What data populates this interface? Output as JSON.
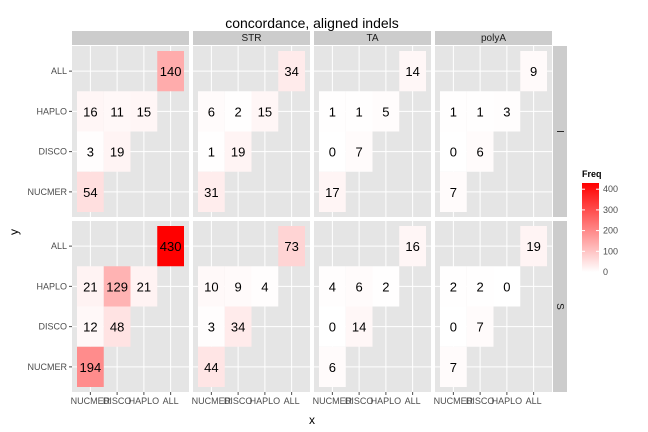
{
  "chart_data": {
    "type": "heatmap",
    "title": "concordance, aligned indels",
    "xlabel": "x",
    "ylabel": "y",
    "x_categories": [
      "NUCMER",
      "DISCO",
      "HAPLO",
      "ALL"
    ],
    "y_categories": [
      "NUCMER",
      "DISCO",
      "HAPLO",
      "ALL"
    ],
    "facet_cols": [
      "",
      "STR",
      "TA",
      "polyA"
    ],
    "facet_rows": [
      "I",
      "S"
    ],
    "legend": {
      "title": "Freq",
      "ticks": [
        0,
        100,
        200,
        300,
        400
      ],
      "min": 0,
      "max": 430,
      "low_color": "#FFFFFF",
      "high_color": "#FF0000",
      "position": "right"
    },
    "grid": true,
    "panels": [
      {
        "row": "I",
        "col": "",
        "cells": [
          {
            "x": "NUCMER",
            "y": "ALL",
            "value": null
          },
          {
            "x": "ALL",
            "y": "ALL",
            "value": 140
          },
          {
            "x": "NUCMER",
            "y": "HAPLO",
            "value": 16
          },
          {
            "x": "DISCO",
            "y": "HAPLO",
            "value": 11
          },
          {
            "x": "HAPLO",
            "y": "HAPLO",
            "value": 15
          },
          {
            "x": "NUCMER",
            "y": "DISCO",
            "value": 3
          },
          {
            "x": "DISCO",
            "y": "DISCO",
            "value": 19
          },
          {
            "x": "NUCMER",
            "y": "NUCMER",
            "value": 54
          }
        ]
      },
      {
        "row": "I",
        "col": "STR",
        "cells": [
          {
            "x": "ALL",
            "y": "ALL",
            "value": 34
          },
          {
            "x": "NUCMER",
            "y": "HAPLO",
            "value": 6
          },
          {
            "x": "DISCO",
            "y": "HAPLO",
            "value": 2
          },
          {
            "x": "HAPLO",
            "y": "HAPLO",
            "value": 15
          },
          {
            "x": "NUCMER",
            "y": "DISCO",
            "value": 1
          },
          {
            "x": "DISCO",
            "y": "DISCO",
            "value": 19
          },
          {
            "x": "NUCMER",
            "y": "NUCMER",
            "value": 31
          }
        ]
      },
      {
        "row": "I",
        "col": "TA",
        "cells": [
          {
            "x": "ALL",
            "y": "ALL",
            "value": 14
          },
          {
            "x": "NUCMER",
            "y": "HAPLO",
            "value": 1
          },
          {
            "x": "DISCO",
            "y": "HAPLO",
            "value": 1
          },
          {
            "x": "HAPLO",
            "y": "HAPLO",
            "value": 5
          },
          {
            "x": "NUCMER",
            "y": "DISCO",
            "value": 0
          },
          {
            "x": "DISCO",
            "y": "DISCO",
            "value": 7
          },
          {
            "x": "NUCMER",
            "y": "NUCMER",
            "value": 17
          }
        ]
      },
      {
        "row": "I",
        "col": "polyA",
        "cells": [
          {
            "x": "ALL",
            "y": "ALL",
            "value": 9
          },
          {
            "x": "NUCMER",
            "y": "HAPLO",
            "value": 1
          },
          {
            "x": "DISCO",
            "y": "HAPLO",
            "value": 1
          },
          {
            "x": "HAPLO",
            "y": "HAPLO",
            "value": 3
          },
          {
            "x": "NUCMER",
            "y": "DISCO",
            "value": 0
          },
          {
            "x": "DISCO",
            "y": "DISCO",
            "value": 6
          },
          {
            "x": "NUCMER",
            "y": "NUCMER",
            "value": 7
          }
        ]
      },
      {
        "row": "S",
        "col": "",
        "cells": [
          {
            "x": "ALL",
            "y": "ALL",
            "value": 430
          },
          {
            "x": "NUCMER",
            "y": "HAPLO",
            "value": 21
          },
          {
            "x": "DISCO",
            "y": "HAPLO",
            "value": 129
          },
          {
            "x": "HAPLO",
            "y": "HAPLO",
            "value": 21
          },
          {
            "x": "NUCMER",
            "y": "DISCO",
            "value": 12
          },
          {
            "x": "DISCO",
            "y": "DISCO",
            "value": 48
          },
          {
            "x": "NUCMER",
            "y": "NUCMER",
            "value": 194
          }
        ]
      },
      {
        "row": "S",
        "col": "STR",
        "cells": [
          {
            "x": "ALL",
            "y": "ALL",
            "value": 73
          },
          {
            "x": "NUCMER",
            "y": "HAPLO",
            "value": 10
          },
          {
            "x": "DISCO",
            "y": "HAPLO",
            "value": 9
          },
          {
            "x": "HAPLO",
            "y": "HAPLO",
            "value": 4
          },
          {
            "x": "NUCMER",
            "y": "DISCO",
            "value": 3
          },
          {
            "x": "DISCO",
            "y": "DISCO",
            "value": 34
          },
          {
            "x": "NUCMER",
            "y": "NUCMER",
            "value": 44
          }
        ]
      },
      {
        "row": "S",
        "col": "TA",
        "cells": [
          {
            "x": "ALL",
            "y": "ALL",
            "value": 16
          },
          {
            "x": "NUCMER",
            "y": "HAPLO",
            "value": 4
          },
          {
            "x": "DISCO",
            "y": "HAPLO",
            "value": 6
          },
          {
            "x": "HAPLO",
            "y": "HAPLO",
            "value": 2
          },
          {
            "x": "NUCMER",
            "y": "DISCO",
            "value": 0
          },
          {
            "x": "DISCO",
            "y": "DISCO",
            "value": 14
          },
          {
            "x": "NUCMER",
            "y": "NUCMER",
            "value": 6
          }
        ]
      },
      {
        "row": "S",
        "col": "polyA",
        "cells": [
          {
            "x": "ALL",
            "y": "ALL",
            "value": 19
          },
          {
            "x": "NUCMER",
            "y": "HAPLO",
            "value": 2
          },
          {
            "x": "DISCO",
            "y": "HAPLO",
            "value": 2
          },
          {
            "x": "HAPLO",
            "y": "HAPLO",
            "value": 0
          },
          {
            "x": "NUCMER",
            "y": "DISCO",
            "value": 0
          },
          {
            "x": "DISCO",
            "y": "DISCO",
            "value": 7
          },
          {
            "x": "NUCMER",
            "y": "NUCMER",
            "value": 7
          }
        ]
      }
    ]
  }
}
